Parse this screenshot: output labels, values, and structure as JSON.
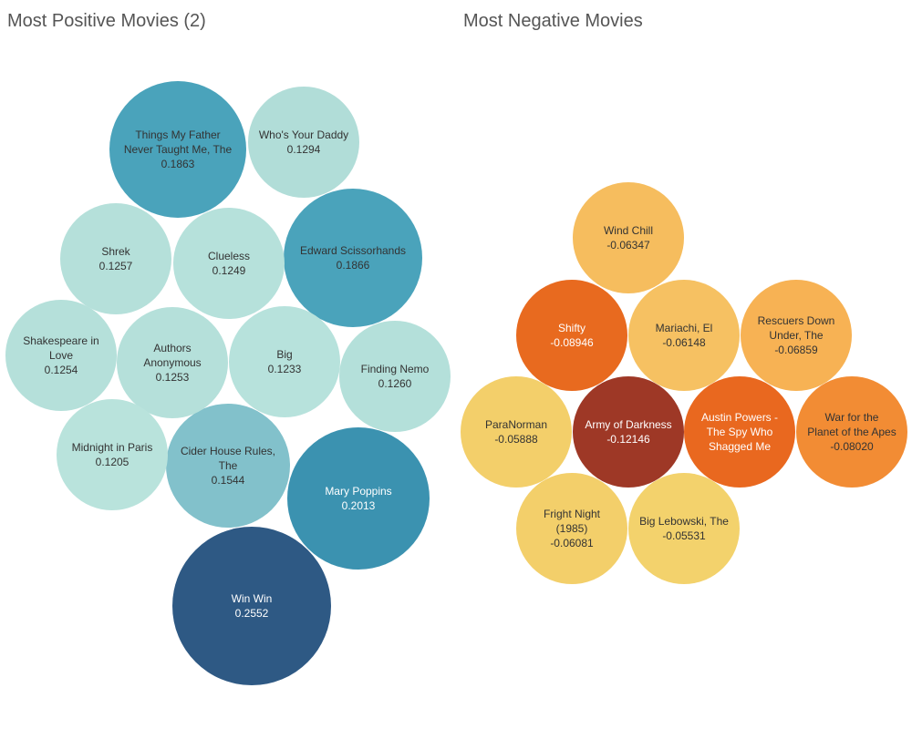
{
  "chart_data": [
    {
      "type": "bubble",
      "title": "Most Positive Movies (2)",
      "points": [
        {
          "label": "Win Win",
          "value": "0.2552",
          "color": "#2e5984"
        },
        {
          "label": "Mary Poppins",
          "value": "0.2013",
          "color": "#3b92b0"
        },
        {
          "label": "Edward Scissorhands",
          "value": "0.1866",
          "color": "#4aa3bb"
        },
        {
          "label": "Things My Father Never Taught Me, The",
          "value": "0.1863",
          "color": "#4aa3bb"
        },
        {
          "label": "Cider House Rules, The",
          "value": "0.1544",
          "color": "#82c1cb"
        },
        {
          "label": "Who's Your Daddy",
          "value": "0.1294",
          "color": "#b1ddd8"
        },
        {
          "label": "Finding Nemo",
          "value": "0.1260",
          "color": "#b4e0da"
        },
        {
          "label": "Shrek",
          "value": "0.1257",
          "color": "#b5e0da"
        },
        {
          "label": "Shakespeare in Love",
          "value": "0.1254",
          "color": "#b5e0da"
        },
        {
          "label": "Authors Anonymous",
          "value": "0.1253",
          "color": "#b5e0da"
        },
        {
          "label": "Clueless",
          "value": "0.1249",
          "color": "#b6e1db"
        },
        {
          "label": "Big",
          "value": "0.1233",
          "color": "#b7e2dc"
        },
        {
          "label": "Midnight in Paris",
          "value": "0.1205",
          "color": "#b9e3dc"
        }
      ]
    },
    {
      "type": "bubble",
      "title": "Most Negative Movies",
      "points": [
        {
          "label": "Wind Chill",
          "value": "-0.06347",
          "color": "#f6bd5e"
        },
        {
          "label": "Shifty",
          "value": "-0.08946",
          "color": "#e86a1f"
        },
        {
          "label": "Mariachi, El",
          "value": "-0.06148",
          "color": "#f6c162"
        },
        {
          "label": "Rescuers Down Under, The",
          "value": "-0.06859",
          "color": "#f7b254"
        },
        {
          "label": "ParaNorman",
          "value": "-0.05888",
          "color": "#f3cf6a"
        },
        {
          "label": "Army of Darkness",
          "value": "-0.12146",
          "color": "#9e3826"
        },
        {
          "label": "Austin Powers - The Spy Who Shagged Me",
          "value": "",
          "color": "#e9681f"
        },
        {
          "label": "War for the Planet of the Apes",
          "value": "-0.08020",
          "color": "#f28c34"
        },
        {
          "label": "Fright Night (1985)",
          "value": "-0.06081",
          "color": "#f3cf6a"
        },
        {
          "label": "Big Lebowski, The",
          "value": "-0.05531",
          "color": "#f3d26c"
        }
      ]
    }
  ]
}
